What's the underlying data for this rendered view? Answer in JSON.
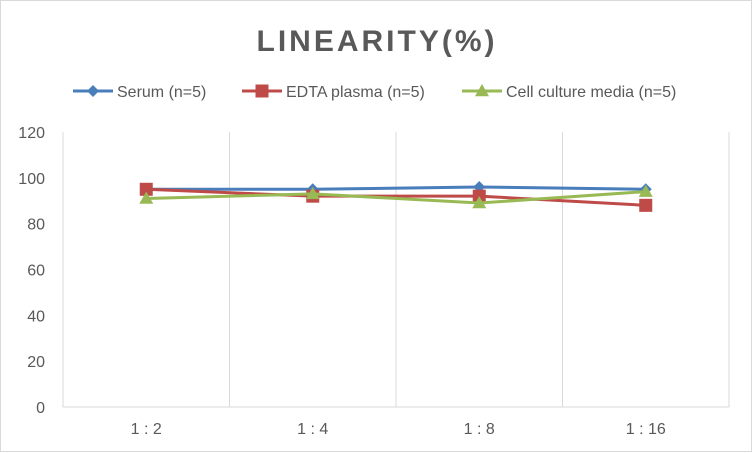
{
  "chart_data": {
    "type": "line",
    "title": "LINEARITY(%)",
    "xlabel": "",
    "ylabel": "",
    "categories": [
      "1:2",
      "1:4",
      "1:8",
      "1:16"
    ],
    "ylim": [
      0,
      120
    ],
    "yticks": [
      0,
      20,
      40,
      60,
      80,
      100,
      120
    ],
    "grid": "vertical",
    "legend_position": "top",
    "series": [
      {
        "name": "Serum (n=5)",
        "values": [
          95,
          95,
          96,
          95
        ],
        "color": "#4a7ebb",
        "marker": "diamond"
      },
      {
        "name": "EDTA plasma (n=5)",
        "values": [
          95,
          92,
          92,
          88
        ],
        "color": "#be4b48",
        "marker": "square"
      },
      {
        "name": "Cell culture media (n=5)",
        "values": [
          91,
          93,
          89,
          94
        ],
        "color": "#98b954",
        "marker": "triangle"
      }
    ]
  }
}
